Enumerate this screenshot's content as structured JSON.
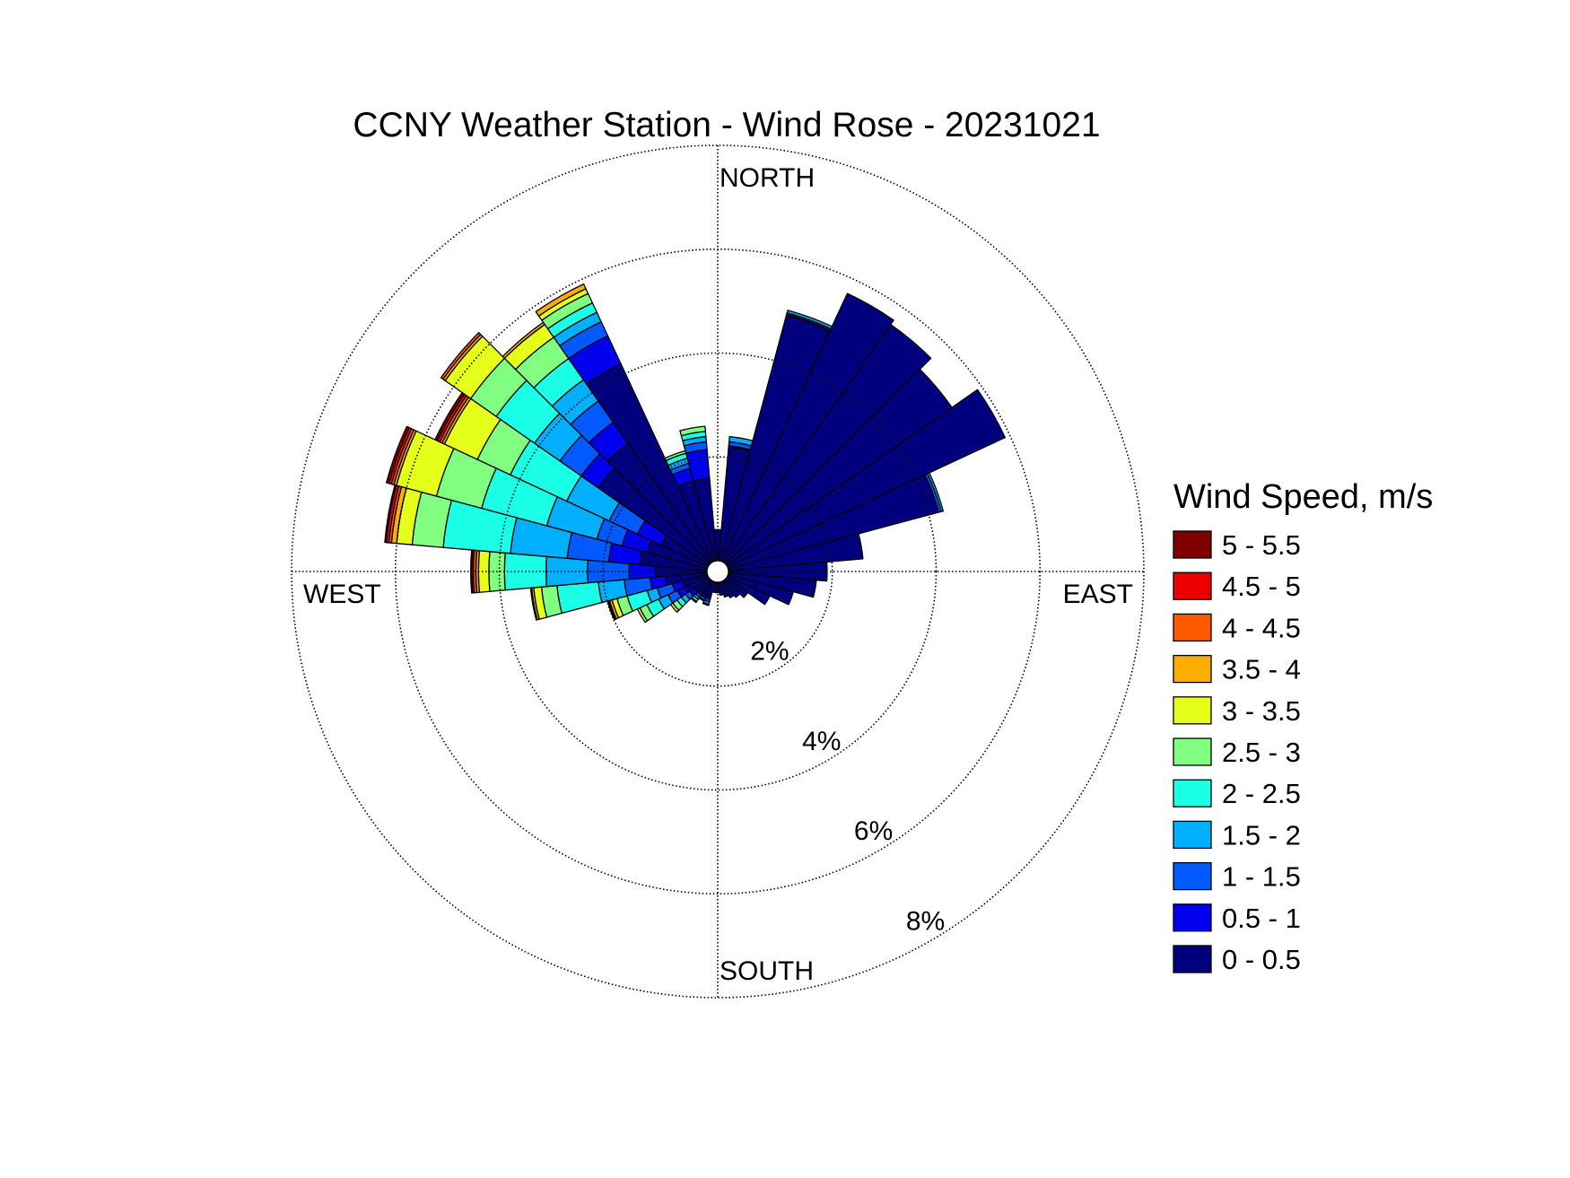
{
  "chart_data": {
    "type": "wind-rose",
    "title": "CCNY Weather Station - Wind Rose - 20231021",
    "direction_labels": {
      "north": "NORTH",
      "east": "EAST",
      "south": "SOUTH",
      "west": "WEST"
    },
    "radial_axis": {
      "unit": "%",
      "max": 8,
      "rings": [
        2,
        4,
        6,
        8
      ],
      "tick_labels": [
        "2%",
        "4%",
        "6%",
        "8%"
      ],
      "tick_label_bearing_deg": 150,
      "grid": true
    },
    "legend": {
      "title": "Wind Speed, m/s",
      "placement": "right",
      "entries": [
        {
          "label": "5 - 5.5",
          "color": "#800000"
        },
        {
          "label": "4.5 - 5",
          "color": "#ee0000"
        },
        {
          "label": "4 - 4.5",
          "color": "#ff5a00"
        },
        {
          "label": "3.5 - 4",
          "color": "#ffad00"
        },
        {
          "label": "3 - 3.5",
          "color": "#e6ff1a"
        },
        {
          "label": "2.5 - 3",
          "color": "#80ff80"
        },
        {
          "label": "2 - 2.5",
          "color": "#1affe6"
        },
        {
          "label": "1.5 - 2",
          "color": "#00b0ff"
        },
        {
          "label": "1 - 1.5",
          "color": "#005aff"
        },
        {
          "label": "0.5 - 1",
          "color": "#0000ee"
        },
        {
          "label": "0 - 0.5",
          "color": "#00007f"
        }
      ]
    },
    "sector_width_deg": 10,
    "bin_order": "lowest speed bin first (0 - 0.5 … 5 - 5.5)",
    "sectors": [
      {
        "direction_deg": 0,
        "frequencies": [
          0.6,
          0,
          0,
          0,
          0,
          0,
          0,
          0,
          0,
          0,
          0
        ]
      },
      {
        "direction_deg": 10,
        "frequencies": [
          2.2,
          0.02,
          0.08,
          0.1,
          0,
          0,
          0,
          0,
          0,
          0,
          0
        ]
      },
      {
        "direction_deg": 20,
        "frequencies": [
          4.9,
          0.02,
          0.03,
          0.05,
          0,
          0,
          0,
          0,
          0,
          0,
          0
        ]
      },
      {
        "direction_deg": 30,
        "frequencies": [
          5.7,
          0,
          0,
          0,
          0,
          0,
          0,
          0,
          0,
          0,
          0
        ]
      },
      {
        "direction_deg": 40,
        "frequencies": [
          5.6,
          0,
          0,
          0,
          0,
          0,
          0,
          0,
          0,
          0,
          0
        ]
      },
      {
        "direction_deg": 50,
        "frequencies": [
          5.3,
          0,
          0,
          0,
          0,
          0,
          0,
          0,
          0,
          0,
          0
        ]
      },
      {
        "direction_deg": 60,
        "frequencies": [
          5.9,
          0,
          0,
          0,
          0,
          0,
          0,
          0,
          0,
          0,
          0
        ]
      },
      {
        "direction_deg": 70,
        "frequencies": [
          4.2,
          0,
          0.05,
          0.04,
          0,
          0,
          0,
          0,
          0,
          0,
          0
        ]
      },
      {
        "direction_deg": 80,
        "frequencies": [
          2.6,
          0,
          0,
          0,
          0,
          0,
          0,
          0,
          0,
          0,
          0
        ]
      },
      {
        "direction_deg": 90,
        "frequencies": [
          1.9,
          0,
          0,
          0,
          0,
          0,
          0,
          0,
          0,
          0,
          0
        ]
      },
      {
        "direction_deg": 100,
        "frequencies": [
          1.7,
          0,
          0,
          0,
          0,
          0,
          0,
          0,
          0,
          0,
          0
        ]
      },
      {
        "direction_deg": 110,
        "frequencies": [
          1.3,
          0,
          0,
          0,
          0,
          0,
          0,
          0,
          0,
          0,
          0
        ]
      },
      {
        "direction_deg": 120,
        "frequencies": [
          0.9,
          0,
          0,
          0,
          0,
          0,
          0,
          0,
          0,
          0,
          0
        ]
      },
      {
        "direction_deg": 130,
        "frequencies": [
          0.5,
          0,
          0,
          0,
          0,
          0,
          0,
          0,
          0,
          0,
          0
        ]
      },
      {
        "direction_deg": 140,
        "frequencies": [
          0.4,
          0,
          0,
          0,
          0,
          0,
          0,
          0,
          0,
          0,
          0
        ]
      },
      {
        "direction_deg": 150,
        "frequencies": [
          0.35,
          0,
          0,
          0,
          0,
          0,
          0,
          0,
          0,
          0,
          0
        ]
      },
      {
        "direction_deg": 160,
        "frequencies": [
          0.3,
          0,
          0,
          0,
          0,
          0,
          0,
          0,
          0,
          0,
          0
        ]
      },
      {
        "direction_deg": 170,
        "frequencies": [
          0.25,
          0,
          0,
          0,
          0,
          0,
          0,
          0,
          0,
          0,
          0
        ]
      },
      {
        "direction_deg": 180,
        "frequencies": [
          0.2,
          0,
          0,
          0,
          0,
          0,
          0,
          0,
          0,
          0,
          0
        ]
      },
      {
        "direction_deg": 190,
        "frequencies": [
          0.2,
          0,
          0,
          0,
          0,
          0,
          0,
          0,
          0,
          0,
          0
        ]
      },
      {
        "direction_deg": 200,
        "frequencies": [
          0.3,
          0.05,
          0.05,
          0.05,
          0.02,
          0,
          0,
          0,
          0,
          0,
          0
        ]
      },
      {
        "direction_deg": 210,
        "frequencies": [
          0.3,
          0.05,
          0.05,
          0.02,
          0,
          0,
          0,
          0,
          0,
          0,
          0
        ]
      },
      {
        "direction_deg": 220,
        "frequencies": [
          0.3,
          0.05,
          0.05,
          0.05,
          0.05,
          0.02,
          0,
          0,
          0,
          0,
          0
        ]
      },
      {
        "direction_deg": 230,
        "frequencies": [
          0.35,
          0.1,
          0.1,
          0.1,
          0.1,
          0.1,
          0.05,
          0,
          0,
          0,
          0
        ]
      },
      {
        "direction_deg": 240,
        "frequencies": [
          0.5,
          0.15,
          0.2,
          0.2,
          0.25,
          0.15,
          0.05,
          0,
          0,
          0,
          0
        ]
      },
      {
        "direction_deg": 250,
        "frequencies": [
          0.5,
          0.2,
          0.3,
          0.2,
          0.4,
          0.2,
          0.1,
          0.05,
          0.02,
          0.02,
          0
        ]
      },
      {
        "direction_deg": 260,
        "frequencies": [
          0.8,
          0.3,
          0.5,
          0.5,
          0.8,
          0.3,
          0.15,
          0.04,
          0.02,
          0,
          0
        ]
      },
      {
        "direction_deg": 270,
        "frequencies": [
          1.0,
          0.5,
          0.8,
          0.8,
          0.8,
          0.3,
          0.2,
          0.05,
          0.05,
          0.03,
          0.02
        ]
      },
      {
        "direction_deg": 280,
        "frequencies": [
          1.3,
          0.6,
          0.8,
          1.1,
          1.3,
          0.6,
          0.3,
          0.1,
          0.05,
          0.05,
          0.03
        ]
      },
      {
        "direction_deg": 290,
        "frequencies": [
          1.2,
          0.5,
          0.5,
          1.0,
          1.3,
          0.9,
          0.8,
          0.05,
          0.05,
          0.05,
          0.05
        ]
      },
      {
        "direction_deg": 300,
        "frequencies": [
          1.0,
          0.5,
          0.6,
          0.9,
          1.2,
          0.7,
          0.7,
          0.05,
          0.05,
          0.05,
          0.05
        ]
      },
      {
        "direction_deg": 310,
        "frequencies": [
          2.6,
          0.4,
          0.5,
          0.6,
          0.9,
          0.6,
          0.6,
          0.05,
          0.05,
          0,
          0
        ]
      },
      {
        "direction_deg": 320,
        "frequencies": [
          2.8,
          0.5,
          0.5,
          0.5,
          0.5,
          0.5,
          0.3,
          0.05,
          0,
          0,
          0
        ]
      },
      {
        "direction_deg": 330,
        "frequencies": [
          4.2,
          0.6,
          0.3,
          0.2,
          0.2,
          0.2,
          0.1,
          0.1,
          0,
          0,
          0
        ]
      },
      {
        "direction_deg": 340,
        "frequencies": [
          1.6,
          0.25,
          0.1,
          0.1,
          0.1,
          0.05,
          0,
          0,
          0,
          0,
          0
        ]
      },
      {
        "direction_deg": 350,
        "frequencies": [
          1.6,
          0.55,
          0.15,
          0.1,
          0.1,
          0.1,
          0,
          0,
          0,
          0,
          0
        ]
      }
    ]
  }
}
